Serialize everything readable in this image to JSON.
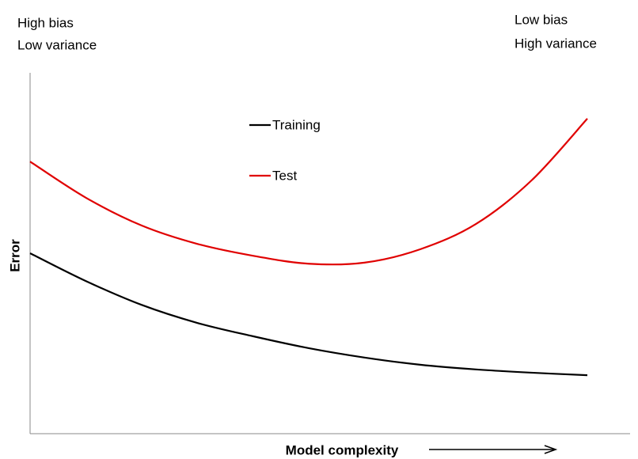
{
  "chart_data": {
    "type": "line",
    "annotations": [
      "High bias",
      "Low variance",
      "Low bias",
      "High variance"
    ],
    "xlabel": "Model complexity",
    "ylabel": "Error",
    "x": [
      0,
      10,
      20,
      30,
      40,
      50,
      60,
      70,
      80,
      90,
      100
    ],
    "series": [
      {
        "name": "Training",
        "color": "#000000",
        "values": [
          50,
          42.3,
          35.7,
          30.7,
          27,
          23.7,
          21.1,
          19.1,
          17.8,
          16.9,
          16.2
        ]
      },
      {
        "name": "Test",
        "color": "#e00000",
        "values": [
          75.4,
          65.4,
          57.7,
          52.6,
          49.3,
          47.1,
          47.4,
          51.1,
          58.1,
          70.2,
          87.3
        ]
      }
    ],
    "xlim": [
      0,
      100
    ],
    "ylim": [
      0,
      100
    ]
  }
}
